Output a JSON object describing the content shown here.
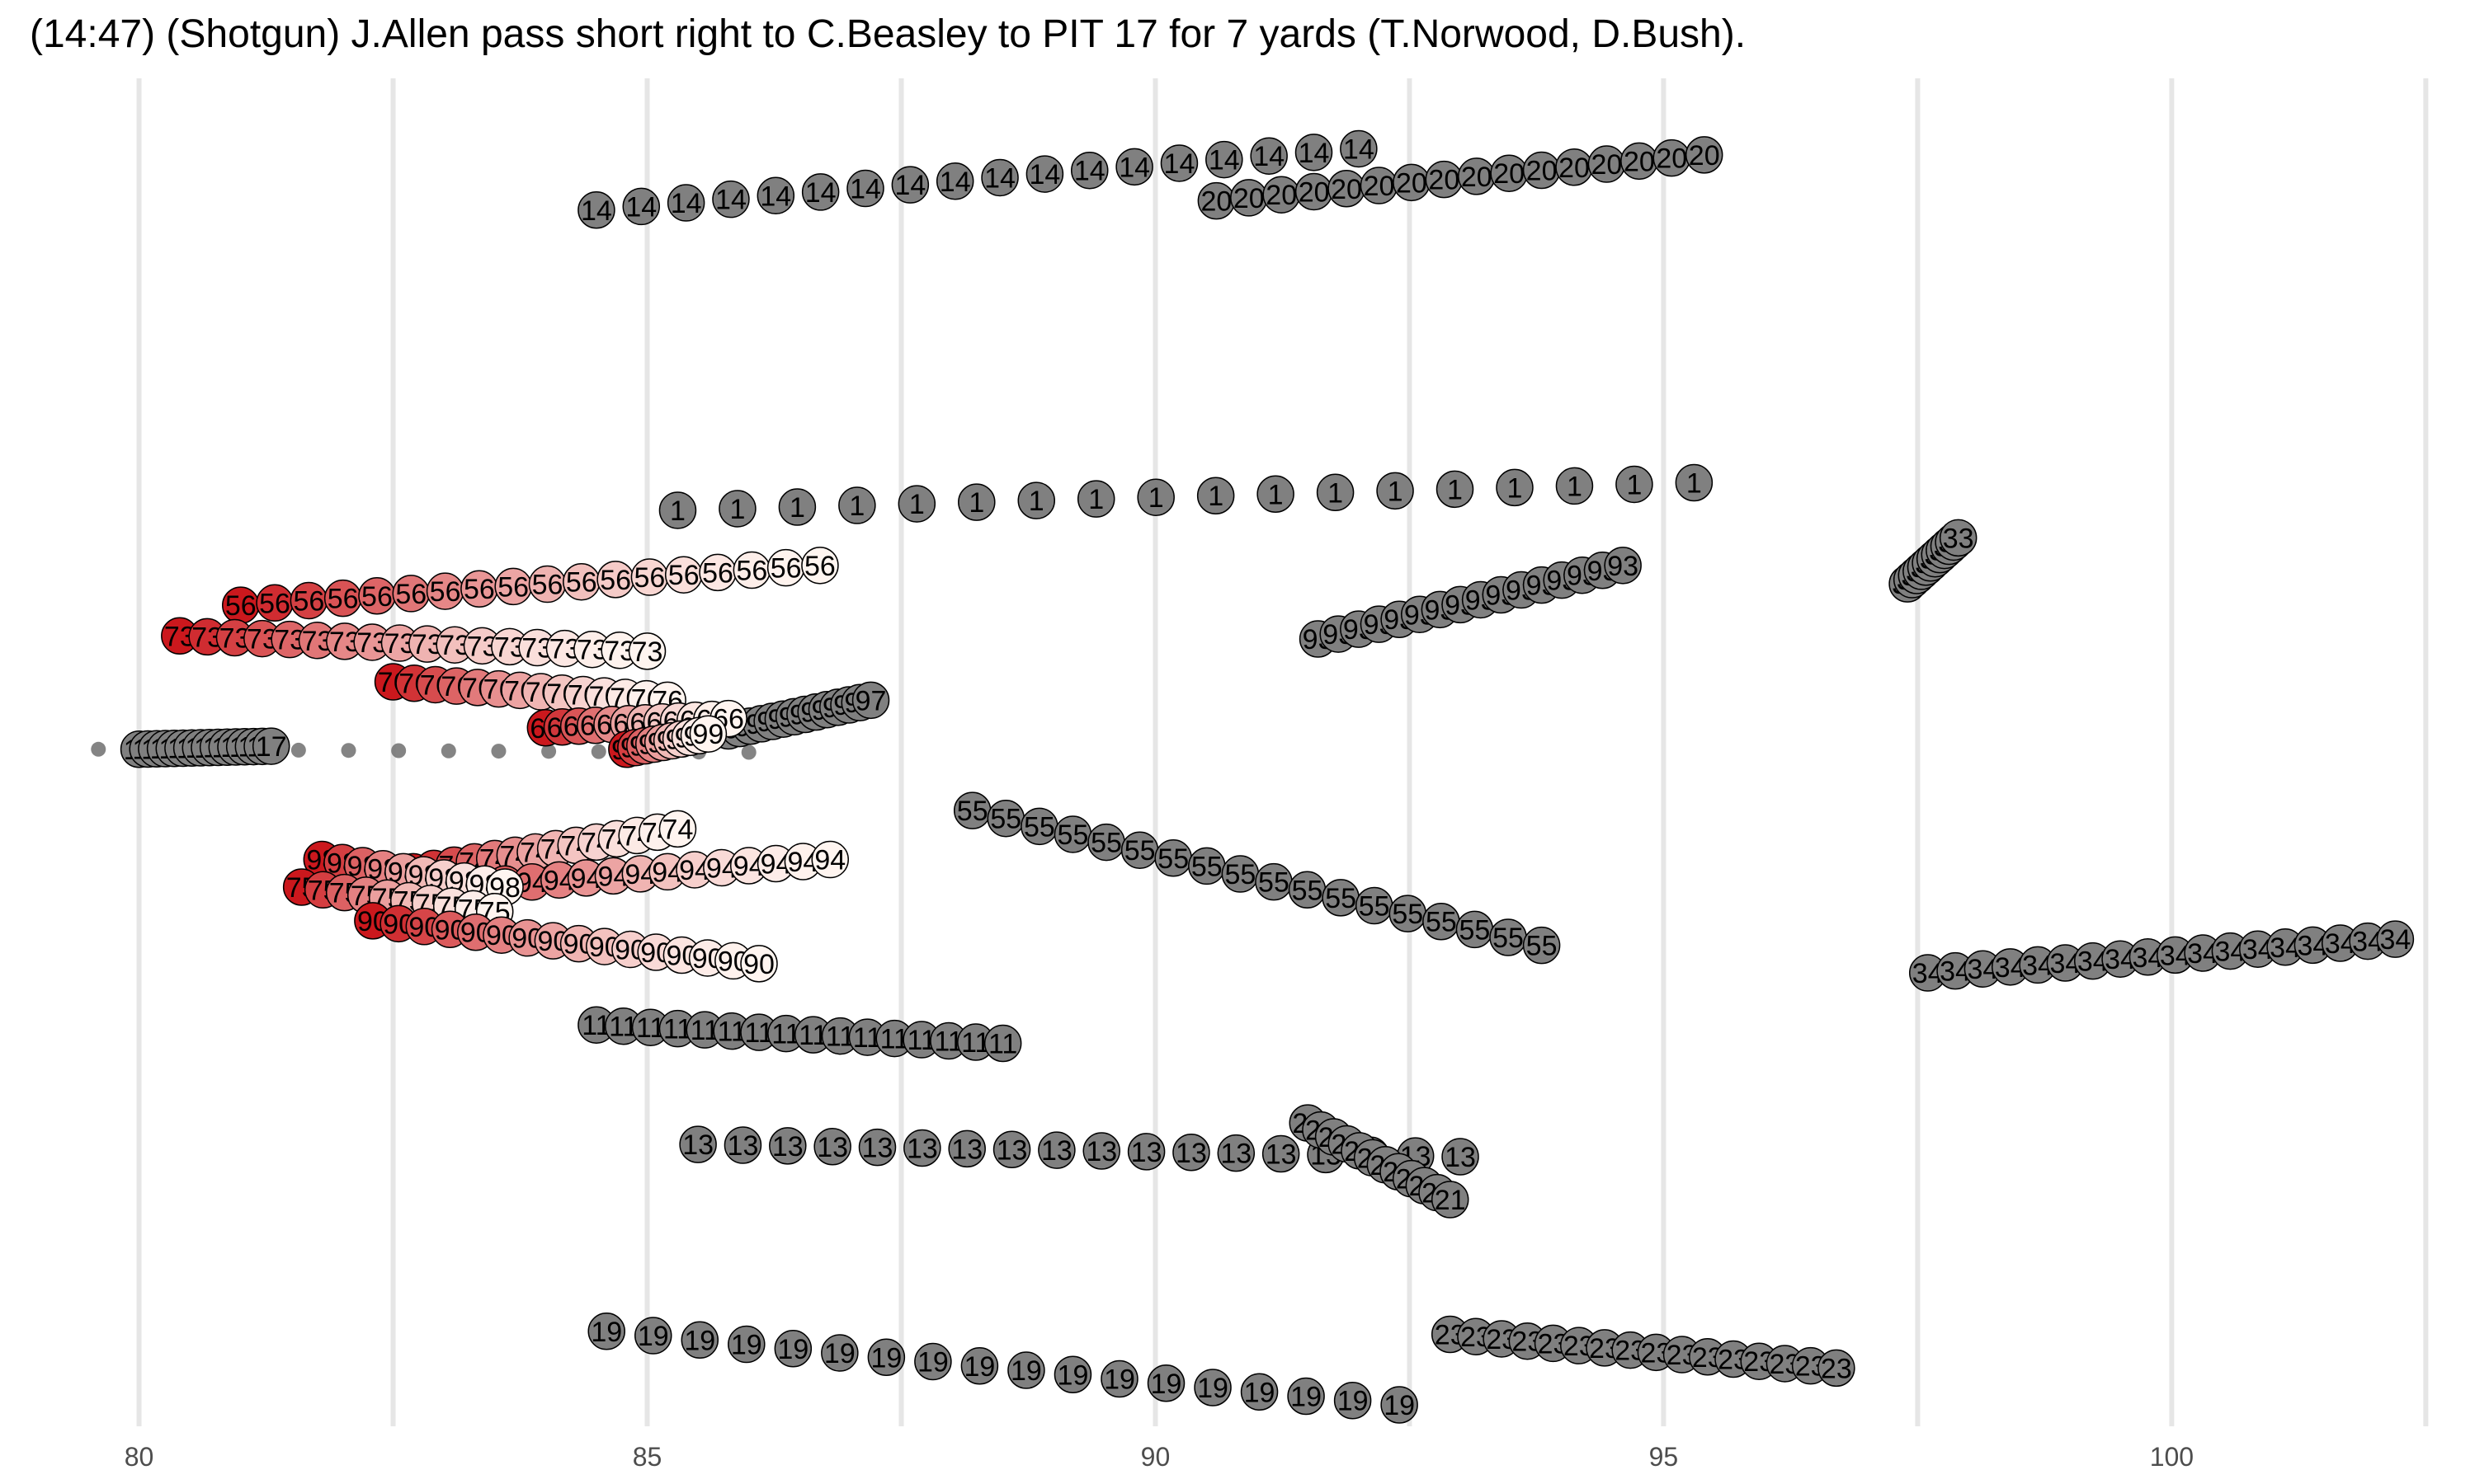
{
  "chart_data": {
    "type": "scatter",
    "title": "(14:47) (Shotgun) J.Allen pass short right to C.Beasley to PIT 17 for 7 yards (T.Norwood, D.Bush).",
    "xlabel": "",
    "ylabel": "",
    "xlim": [
      79.2,
      102.7
    ],
    "ylim": [
      7.5,
      51.5
    ],
    "x_ticks": [
      80,
      85,
      90,
      95,
      100
    ],
    "x_tick_labels": [
      "80",
      "85",
      "90",
      "95",
      "100"
    ],
    "grid": "vertical major and minor lines",
    "colors": {
      "offense_fill": "#808080",
      "defense_light": "#fff5f0",
      "defense_dark": "#cb181d",
      "defense_darkest": "#d40000",
      "ball": "#6e6e6e",
      "grid": "#e6e6e6"
    },
    "series": [
      {
        "name": "14",
        "team": "offense",
        "x_start": 84.5,
        "y_start": 47.2,
        "x_end": 92.0,
        "y_end": 49.2,
        "frames": 18
      },
      {
        "name": "20",
        "team": "offense",
        "x_start": 90.6,
        "y_start": 47.5,
        "x_end": 95.4,
        "y_end": 49.0,
        "frames": 16
      },
      {
        "name": "1",
        "team": "offense",
        "x_start": 85.3,
        "y_start": 37.4,
        "x_end": 95.3,
        "y_end": 38.3,
        "frames": 18
      },
      {
        "name": "93",
        "team": "offense",
        "x_start": 91.6,
        "y_start": 33.2,
        "x_end": 94.6,
        "y_end": 35.6,
        "frames": 16
      },
      {
        "name": "33",
        "team": "offense",
        "x_start": 97.4,
        "y_start": 35.0,
        "x_end": 97.9,
        "y_end": 36.5,
        "frames": 12
      },
      {
        "name": "17",
        "team": "offense",
        "x_start": 80.0,
        "y_start": 29.6,
        "x_end": 81.3,
        "y_end": 29.7,
        "frames": 16
      },
      {
        "name": "97",
        "team": "offense",
        "x_start": 85.8,
        "y_start": 30.2,
        "x_end": 87.2,
        "y_end": 31.2,
        "frames": 14
      },
      {
        "name": "55",
        "team": "offense",
        "x_start": 88.2,
        "y_start": 27.6,
        "x_end": 93.8,
        "y_end": 23.2,
        "frames": 18
      },
      {
        "name": "34",
        "team": "offense",
        "x_start": 97.6,
        "y_start": 22.3,
        "x_end": 102.2,
        "y_end": 23.4,
        "frames": 18
      },
      {
        "name": "11",
        "team": "offense",
        "x_start": 84.5,
        "y_start": 20.6,
        "x_end": 88.5,
        "y_end": 20.0,
        "frames": 16
      },
      {
        "name": "13",
        "team": "offense",
        "x_start": 85.5,
        "y_start": 16.7,
        "x_end": 93.0,
        "y_end": 16.3,
        "frames": 18
      },
      {
        "name": "21",
        "team": "offense",
        "x_start": 91.5,
        "y_start": 17.4,
        "x_end": 92.9,
        "y_end": 14.9,
        "frames": 12
      },
      {
        "name": "19",
        "team": "offense",
        "x_start": 84.6,
        "y_start": 10.6,
        "x_end": 92.4,
        "y_end": 8.2,
        "frames": 18
      },
      {
        "name": "23",
        "team": "offense",
        "x_start": 92.9,
        "y_start": 10.5,
        "x_end": 96.7,
        "y_end": 9.4,
        "frames": 16
      },
      {
        "name": "56",
        "team": "defense",
        "x_start": 81.0,
        "y_start": 34.3,
        "x_end": 86.7,
        "y_end": 35.6,
        "frames": 18
      },
      {
        "name": "73",
        "team": "defense",
        "x_start": 80.4,
        "y_start": 33.3,
        "x_end": 85.0,
        "y_end": 32.8,
        "frames": 18
      },
      {
        "name": "76",
        "team": "defense",
        "x_start": 82.5,
        "y_start": 31.8,
        "x_end": 85.2,
        "y_end": 31.2,
        "frames": 14
      },
      {
        "name": "66",
        "team": "defense",
        "x_start": 84.0,
        "y_start": 30.3,
        "x_end": 85.8,
        "y_end": 30.6,
        "frames": 12
      },
      {
        "name": "99",
        "team": "defense",
        "x_start": 84.8,
        "y_start": 29.6,
        "x_end": 85.6,
        "y_end": 30.1,
        "frames": 10
      },
      {
        "name": "74",
        "team": "defense",
        "x_start": 82.7,
        "y_start": 25.6,
        "x_end": 85.3,
        "y_end": 27.0,
        "frames": 14
      },
      {
        "name": "94",
        "team": "defense",
        "x_start": 82.8,
        "y_start": 25.0,
        "x_end": 86.8,
        "y_end": 26.0,
        "frames": 16
      },
      {
        "name": "98",
        "team": "defense",
        "x_start": 81.8,
        "y_start": 26.0,
        "x_end": 83.6,
        "y_end": 25.1,
        "frames": 10
      },
      {
        "name": "75",
        "team": "defense",
        "x_start": 81.6,
        "y_start": 25.1,
        "x_end": 83.5,
        "y_end": 24.3,
        "frames": 10
      },
      {
        "name": "90",
        "team": "defense",
        "x_start": 82.3,
        "y_start": 24.0,
        "x_end": 86.1,
        "y_end": 22.6,
        "frames": 16
      }
    ],
    "ball": {
      "x_start": 79.6,
      "y_start": 29.6,
      "x_end": 86.0,
      "y_end": 29.5,
      "frames": 14
    }
  }
}
